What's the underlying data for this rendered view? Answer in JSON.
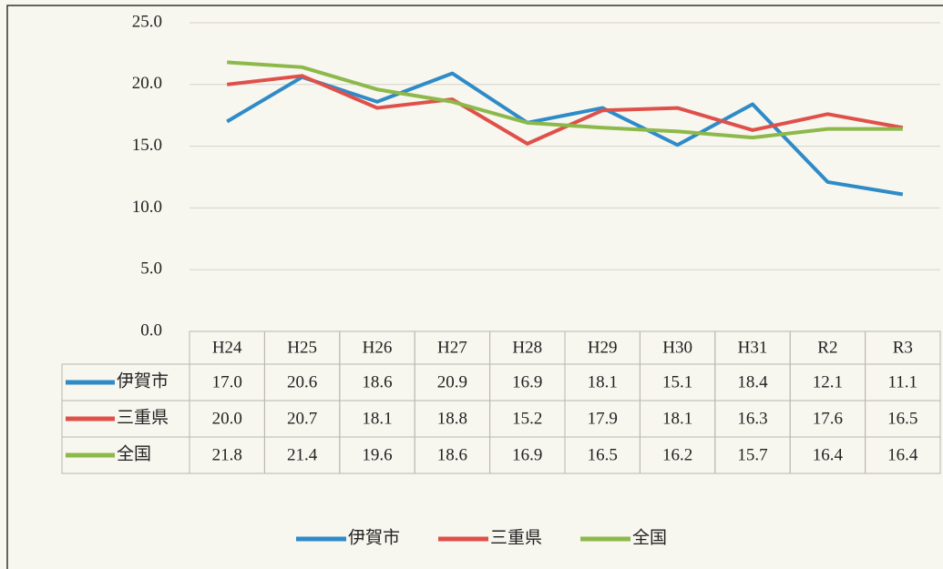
{
  "chart_data": {
    "type": "line",
    "categories": [
      "H24",
      "H25",
      "H26",
      "H27",
      "H28",
      "H29",
      "H30",
      "H31",
      "R2",
      "R3"
    ],
    "series": [
      {
        "name": "伊賀市",
        "color": "#2e8bc8",
        "values": [
          17.0,
          20.6,
          18.6,
          20.9,
          16.9,
          18.1,
          15.1,
          18.4,
          12.1,
          11.1
        ],
        "value_labels": [
          "17.0",
          "20.6",
          "18.6",
          "20.9",
          "16.9",
          "18.1",
          "15.1",
          "18.4",
          "12.1",
          "11.1"
        ]
      },
      {
        "name": "三重県",
        "color": "#e0504a",
        "values": [
          20.0,
          20.7,
          18.1,
          18.8,
          15.2,
          17.9,
          18.1,
          16.3,
          17.6,
          16.5
        ],
        "value_labels": [
          "20.0",
          "20.7",
          "18.1",
          "18.8",
          "15.2",
          "17.9",
          "18.1",
          "16.3",
          "17.6",
          "16.5"
        ]
      },
      {
        "name": "全国",
        "color": "#8db84a",
        "values": [
          21.8,
          21.4,
          19.6,
          18.6,
          16.9,
          16.5,
          16.2,
          15.7,
          16.4,
          16.4
        ],
        "value_labels": [
          "21.8",
          "21.4",
          "19.6",
          "18.6",
          "16.9",
          "16.5",
          "16.2",
          "15.7",
          "16.4",
          "16.4"
        ]
      }
    ],
    "ylim": [
      0,
      25
    ],
    "yticks": [
      {
        "value": 0,
        "label": "0.0"
      },
      {
        "value": 5,
        "label": "5.0"
      },
      {
        "value": 10,
        "label": "10.0"
      },
      {
        "value": 15,
        "label": "15.0"
      },
      {
        "value": 20,
        "label": "20.0"
      },
      {
        "value": 25,
        "label": "25.0"
      }
    ],
    "grid": true,
    "legend": "bottom"
  }
}
